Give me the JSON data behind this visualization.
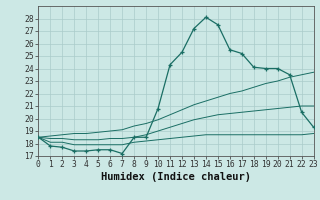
{
  "xlabel": "Humidex (Indice chaleur)",
  "bg_color": "#cce8e5",
  "grid_color": "#aaccca",
  "line_color": "#1a6e64",
  "x_values": [
    0,
    1,
    2,
    3,
    4,
    5,
    6,
    7,
    8,
    9,
    10,
    11,
    12,
    13,
    14,
    15,
    16,
    17,
    18,
    19,
    20,
    21,
    22,
    23
  ],
  "curve1": [
    18.5,
    17.8,
    17.7,
    17.4,
    17.4,
    17.5,
    17.5,
    17.2,
    18.5,
    18.5,
    20.8,
    24.3,
    25.3,
    27.2,
    28.1,
    27.5,
    25.5,
    25.2,
    24.1,
    24.0,
    24.0,
    23.5,
    20.5,
    19.3
  ],
  "curve2": [
    18.5,
    18.1,
    18.1,
    17.9,
    17.9,
    17.9,
    17.9,
    17.9,
    18.1,
    18.2,
    18.3,
    18.4,
    18.5,
    18.6,
    18.7,
    18.7,
    18.7,
    18.7,
    18.7,
    18.7,
    18.7,
    18.7,
    18.7,
    18.8
  ],
  "curve3": [
    18.5,
    18.4,
    18.4,
    18.3,
    18.3,
    18.3,
    18.4,
    18.4,
    18.5,
    18.7,
    19.0,
    19.3,
    19.6,
    19.9,
    20.1,
    20.3,
    20.4,
    20.5,
    20.6,
    20.7,
    20.8,
    20.9,
    21.0,
    21.0
  ],
  "curve4": [
    18.5,
    18.6,
    18.7,
    18.8,
    18.8,
    18.9,
    19.0,
    19.1,
    19.4,
    19.6,
    19.9,
    20.3,
    20.7,
    21.1,
    21.4,
    21.7,
    22.0,
    22.2,
    22.5,
    22.8,
    23.0,
    23.3,
    23.5,
    23.7
  ],
  "ylim": [
    17,
    29
  ],
  "xlim": [
    0,
    23
  ],
  "yticks": [
    17,
    18,
    19,
    20,
    21,
    22,
    23,
    24,
    25,
    26,
    27,
    28
  ],
  "xticks": [
    0,
    1,
    2,
    3,
    4,
    5,
    6,
    7,
    8,
    9,
    10,
    11,
    12,
    13,
    14,
    15,
    16,
    17,
    18,
    19,
    20,
    21,
    22,
    23
  ],
  "label_fontsize": 6.5,
  "tick_fontsize": 5.8,
  "xlabel_fontsize": 7.5
}
